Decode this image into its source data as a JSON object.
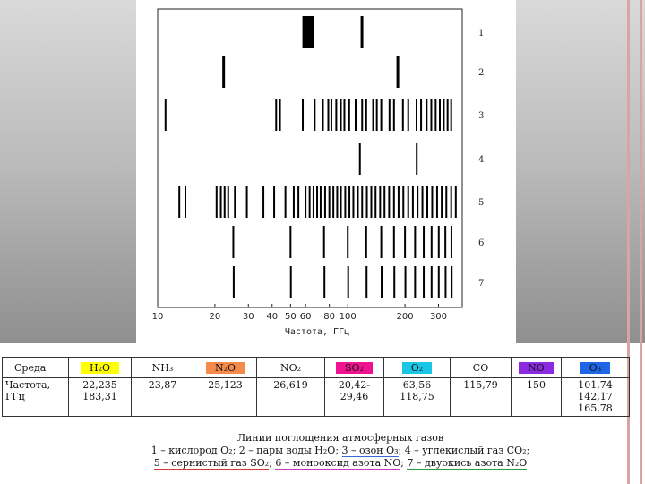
{
  "chart_data": {
    "type": "spectral-lines",
    "x_scale": "log",
    "xlim": [
      10,
      400
    ],
    "xlabel": "Частота, ГГц",
    "x_ticks": [
      10,
      20,
      30,
      40,
      50,
      60,
      80,
      100,
      200,
      300
    ],
    "tick_labels": [
      "10",
      "20",
      "30",
      "40",
      "50",
      "60",
      "80",
      "100",
      "200",
      "300"
    ],
    "grid": false,
    "series": [
      {
        "name": "1",
        "color": "#000000",
        "lines": [
          {
            "f": 59,
            "w": 4
          },
          {
            "f": 60,
            "w": 4
          },
          {
            "f": 61,
            "w": 4
          },
          {
            "f": 62,
            "w": 4
          },
          {
            "f": 63,
            "w": 4
          },
          {
            "f": 64,
            "w": 4
          },
          {
            "f": 65,
            "w": 4
          },
          {
            "f": 118.75,
            "w": 3
          }
        ]
      },
      {
        "name": "2",
        "color": "#000000",
        "lines": [
          {
            "f": 22.235,
            "w": 3
          },
          {
            "f": 183.31,
            "w": 3
          }
        ]
      },
      {
        "name": "3",
        "color": "#000000",
        "lines": [
          {
            "f": 11,
            "w": 2
          },
          {
            "f": 42,
            "w": 2
          },
          {
            "f": 44,
            "w": 2
          },
          {
            "f": 58,
            "w": 2
          },
          {
            "f": 67,
            "w": 2
          },
          {
            "f": 74,
            "w": 2
          },
          {
            "f": 79,
            "w": 2
          },
          {
            "f": 82,
            "w": 2
          },
          {
            "f": 87,
            "w": 2
          },
          {
            "f": 92,
            "w": 2
          },
          {
            "f": 96,
            "w": 2
          },
          {
            "f": 101.74,
            "w": 2
          },
          {
            "f": 110,
            "w": 2
          },
          {
            "f": 119,
            "w": 2
          },
          {
            "f": 125,
            "w": 2
          },
          {
            "f": 136,
            "w": 2
          },
          {
            "f": 142.17,
            "w": 2
          },
          {
            "f": 150,
            "w": 2
          },
          {
            "f": 165.78,
            "w": 2
          },
          {
            "f": 175,
            "w": 2
          },
          {
            "f": 195,
            "w": 2
          },
          {
            "f": 208,
            "w": 2
          },
          {
            "f": 230,
            "w": 2
          },
          {
            "f": 243,
            "w": 2
          },
          {
            "f": 260,
            "w": 2
          },
          {
            "f": 275,
            "w": 2
          },
          {
            "f": 290,
            "w": 2
          },
          {
            "f": 305,
            "w": 2
          },
          {
            "f": 320,
            "w": 2
          },
          {
            "f": 335,
            "w": 2
          },
          {
            "f": 350,
            "w": 2
          }
        ]
      },
      {
        "name": "4",
        "color": "#000000",
        "lines": [
          {
            "f": 115.79,
            "w": 2
          },
          {
            "f": 230.54,
            "w": 2
          }
        ]
      },
      {
        "name": "5",
        "color": "#000000",
        "lines": [
          {
            "f": 13,
            "w": 2
          },
          {
            "f": 14,
            "w": 2
          },
          {
            "f": 20.42,
            "w": 2
          },
          {
            "f": 21.5,
            "w": 2
          },
          {
            "f": 22.5,
            "w": 2
          },
          {
            "f": 23.5,
            "w": 2
          },
          {
            "f": 25.5,
            "w": 2
          },
          {
            "f": 29.46,
            "w": 2
          },
          {
            "f": 36,
            "w": 2
          },
          {
            "f": 41,
            "w": 2
          },
          {
            "f": 47,
            "w": 2
          },
          {
            "f": 52,
            "w": 2
          },
          {
            "f": 55,
            "w": 2
          },
          {
            "f": 60,
            "w": 2
          },
          {
            "f": 63,
            "w": 2
          },
          {
            "f": 66,
            "w": 2
          },
          {
            "f": 69,
            "w": 2
          },
          {
            "f": 72,
            "w": 2
          },
          {
            "f": 76,
            "w": 2
          },
          {
            "f": 80,
            "w": 2
          },
          {
            "f": 84,
            "w": 2
          },
          {
            "f": 88,
            "w": 2
          },
          {
            "f": 92,
            "w": 2
          },
          {
            "f": 97,
            "w": 2
          },
          {
            "f": 102,
            "w": 2
          },
          {
            "f": 107,
            "w": 2
          },
          {
            "f": 113,
            "w": 2
          },
          {
            "f": 119,
            "w": 2
          },
          {
            "f": 126,
            "w": 2
          },
          {
            "f": 133,
            "w": 2
          },
          {
            "f": 140,
            "w": 2
          },
          {
            "f": 148,
            "w": 2
          },
          {
            "f": 156,
            "w": 2
          },
          {
            "f": 165,
            "w": 2
          },
          {
            "f": 175,
            "w": 2
          },
          {
            "f": 185,
            "w": 2
          },
          {
            "f": 196,
            "w": 2
          },
          {
            "f": 208,
            "w": 2
          },
          {
            "f": 220,
            "w": 2
          },
          {
            "f": 233,
            "w": 2
          },
          {
            "f": 247,
            "w": 2
          },
          {
            "f": 262,
            "w": 2
          },
          {
            "f": 278,
            "w": 2
          },
          {
            "f": 295,
            "w": 2
          },
          {
            "f": 312,
            "w": 2
          },
          {
            "f": 330,
            "w": 2
          },
          {
            "f": 350,
            "w": 2
          },
          {
            "f": 370,
            "w": 2
          }
        ]
      },
      {
        "name": "6",
        "color": "#000000",
        "lines": [
          {
            "f": 25,
            "w": 2
          },
          {
            "f": 50,
            "w": 2
          },
          {
            "f": 75,
            "w": 2
          },
          {
            "f": 100,
            "w": 2
          },
          {
            "f": 125,
            "w": 2
          },
          {
            "f": 150,
            "w": 2
          },
          {
            "f": 175,
            "w": 2
          },
          {
            "f": 200,
            "w": 2
          },
          {
            "f": 226,
            "w": 2
          },
          {
            "f": 251,
            "w": 2
          },
          {
            "f": 276,
            "w": 2
          },
          {
            "f": 301,
            "w": 2
          },
          {
            "f": 326,
            "w": 2
          },
          {
            "f": 351,
            "w": 2
          }
        ]
      },
      {
        "name": "7",
        "color": "#000000",
        "lines": [
          {
            "f": 25.123,
            "w": 2
          },
          {
            "f": 50.2,
            "w": 2
          },
          {
            "f": 75.4,
            "w": 2
          },
          {
            "f": 100.5,
            "w": 2
          },
          {
            "f": 125.6,
            "w": 2
          },
          {
            "f": 150.7,
            "w": 2
          },
          {
            "f": 175.8,
            "w": 2
          },
          {
            "f": 201,
            "w": 2
          },
          {
            "f": 226,
            "w": 2
          },
          {
            "f": 251,
            "w": 2
          },
          {
            "f": 276,
            "w": 2
          },
          {
            "f": 301,
            "w": 2
          },
          {
            "f": 327,
            "w": 2
          },
          {
            "f": 352,
            "w": 2
          }
        ]
      }
    ]
  },
  "table": {
    "header": [
      {
        "text": "Среда",
        "color": ""
      },
      {
        "text": "H₂O",
        "color": "#ffff00"
      },
      {
        "text": "NH₃",
        "color": ""
      },
      {
        "text": "N₂O",
        "color": "#f58a4a"
      },
      {
        "text": "NO₂",
        "color": ""
      },
      {
        "text": "SO₂",
        "color": "#f0138f"
      },
      {
        "text": "O₂",
        "color": "#19c6e6"
      },
      {
        "text": "CO",
        "color": ""
      },
      {
        "text": "NO",
        "color": "#8a2be2"
      },
      {
        "text": "O₃",
        "color": "#1e66e6"
      }
    ],
    "values": [
      "Частота, ГГц",
      "22,235\n183,31",
      "23,87",
      "25,123",
      "26,619",
      "20,42-\n29,46",
      "63,56\n118,75",
      "115,79",
      "150",
      "101,74\n142,17\n165,78"
    ]
  },
  "caption": {
    "title": "Линии поглощения атмосферных газов",
    "line1": [
      {
        "text": "1 – кислород O₂; ",
        "u": ""
      },
      {
        "text": "2 – пары воды H₂O; ",
        "u": ""
      },
      {
        "text": "3 – озон O₃",
        "u": "u-blue"
      },
      {
        "text": "; 4 – углекислый газ CO₂;",
        "u": ""
      }
    ],
    "line2": [
      {
        "text": "5 – сернистый газ SO₂",
        "u": "u-red"
      },
      {
        "text": "; ",
        "u": ""
      },
      {
        "text": "6 – монооксид азота NO",
        "u": "u-mag"
      },
      {
        "text": "; ",
        "u": ""
      },
      {
        "text": "7 – двуокись азота N₂O",
        "u": "u-green"
      }
    ]
  }
}
